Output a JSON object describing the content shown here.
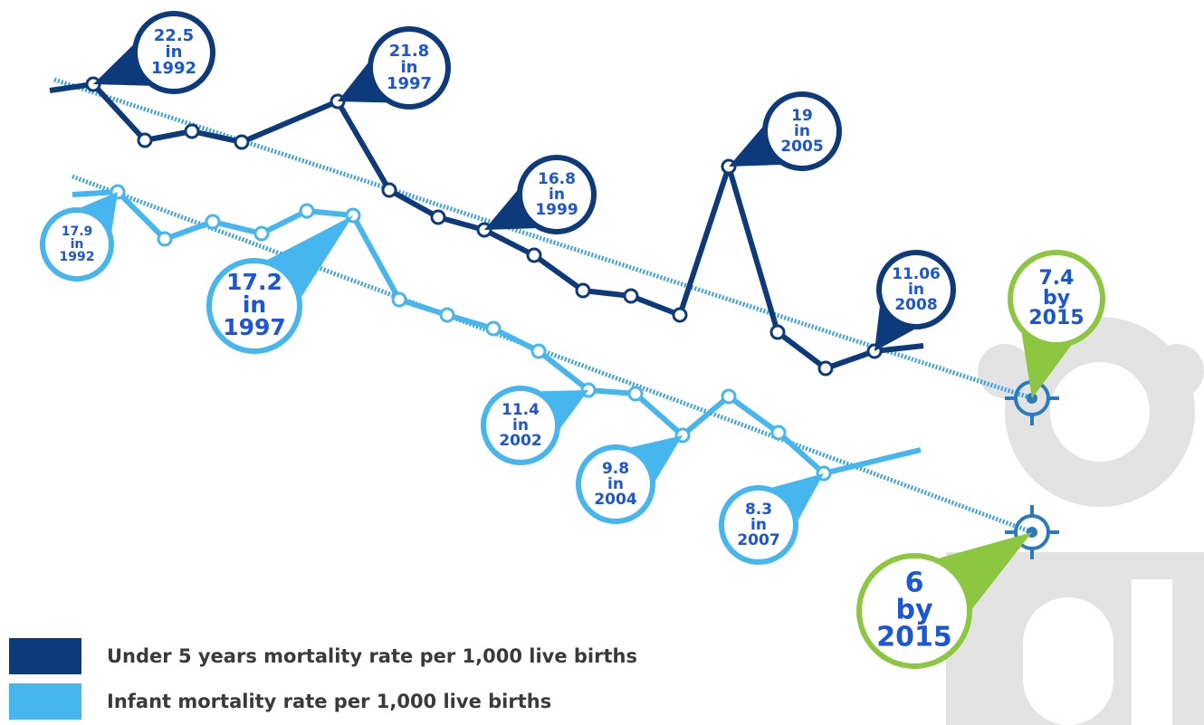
{
  "series": [
    {
      "name": "Under 5 years mortality rate per 1,000 live births",
      "callouts": [
        {
          "value": "22.5",
          "word": "in",
          "year": "1992"
        },
        {
          "value": "21.8",
          "word": "in",
          "year": "1997"
        },
        {
          "value": "16.8",
          "word": "in",
          "year": "1999"
        },
        {
          "value": "19",
          "word": "in",
          "year": "2005"
        },
        {
          "value": "11.06",
          "word": "in",
          "year": "2008"
        }
      ],
      "target": {
        "value": "7.4",
        "word": "by",
        "year": "2015"
      }
    },
    {
      "name": "Infant mortality rate per 1,000 live births",
      "callouts": [
        {
          "value": "17.9",
          "word": "in",
          "year": "1992"
        },
        {
          "value": "17.2",
          "word": "in",
          "year": "1997"
        },
        {
          "value": "11.4",
          "word": "in",
          "year": "2002"
        },
        {
          "value": "9.8",
          "word": "in",
          "year": "2004"
        },
        {
          "value": "8.3",
          "word": "in",
          "year": "2007"
        }
      ],
      "target": {
        "value": "6",
        "word": "by",
        "year": "2015"
      }
    }
  ]
}
